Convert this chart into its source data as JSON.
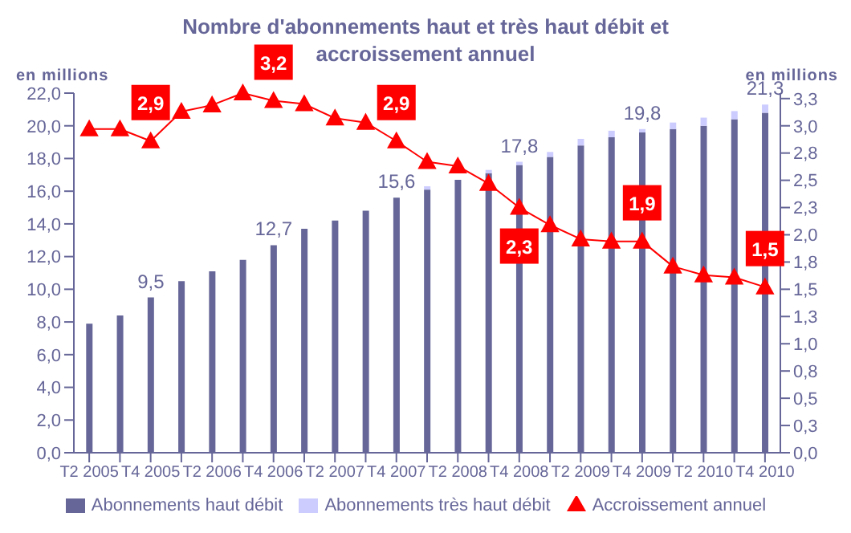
{
  "chart_data": {
    "type": "bar",
    "title": "Nombre d'abonnements haut et très haut débit et accroissement annuel",
    "ylabel": "en millions",
    "y2label": "en millions",
    "categories": [
      "T2 2005",
      null,
      "T4 2005",
      null,
      "T2 2006",
      null,
      "T4 2006",
      null,
      "T2 2007",
      null,
      "T4 2007",
      null,
      "T2 2008",
      null,
      "T4 2008",
      null,
      "T2 2009",
      null,
      "T4 2009",
      null,
      "T2 2010",
      null,
      "T4 2010"
    ],
    "stacked": true,
    "series": [
      {
        "name": "Abonnements haut débit",
        "color": "#666699",
        "values": [
          7.9,
          8.4,
          9.5,
          10.5,
          11.1,
          11.8,
          12.7,
          13.7,
          14.2,
          14.8,
          15.6,
          16.1,
          16.7,
          17.1,
          17.6,
          18.1,
          18.8,
          19.3,
          19.6,
          19.8,
          20.0,
          20.4,
          20.8
        ]
      },
      {
        "name": "Abonnements très haut débit",
        "color": "#ccccff",
        "values": [
          0,
          0,
          0,
          0,
          0,
          0,
          0,
          0,
          0,
          0,
          0,
          0.2,
          0,
          0.2,
          0.2,
          0.3,
          0.4,
          0.4,
          0.2,
          0.4,
          0.5,
          0.5,
          0.5
        ]
      },
      {
        "name": "Accroissement annuel",
        "type": "line",
        "axis": "y2",
        "color": "#ff0000",
        "values": [
          2.97,
          2.97,
          2.86,
          3.13,
          3.19,
          3.3,
          3.23,
          3.2,
          3.07,
          3.03,
          2.86,
          2.67,
          2.63,
          2.47,
          2.25,
          2.09,
          1.96,
          1.94,
          1.94,
          1.71,
          1.63,
          1.61,
          1.52
        ],
        "value_labels": [
          null,
          null,
          "2,9",
          null,
          null,
          null,
          "3,2",
          null,
          null,
          null,
          "2,9",
          null,
          null,
          null,
          "2,3",
          null,
          null,
          null,
          "1,9",
          null,
          null,
          null,
          "1,5"
        ]
      }
    ],
    "totals": [
      null,
      null,
      "9,5",
      null,
      null,
      null,
      "12,7",
      null,
      null,
      null,
      "15,6",
      null,
      null,
      null,
      "17,8",
      null,
      null,
      null,
      "19,8",
      null,
      null,
      null,
      "21,3"
    ],
    "ylim": [
      0,
      22
    ],
    "yticks": [
      {
        "value": 0,
        "label": "0,0"
      },
      {
        "value": 2,
        "label": "2,0"
      },
      {
        "value": 4,
        "label": "4,0"
      },
      {
        "value": 6,
        "label": "6,0"
      },
      {
        "value": 8,
        "label": "8,0"
      },
      {
        "value": 10,
        "label": "10,0"
      },
      {
        "value": 12,
        "label": "12,0"
      },
      {
        "value": 14,
        "label": "14,0"
      },
      {
        "value": 16,
        "label": "16,0"
      },
      {
        "value": 18,
        "label": "18,0"
      },
      {
        "value": 20,
        "label": "20,0"
      },
      {
        "value": 22,
        "label": "22,0"
      }
    ],
    "y2lim": [
      0,
      3.3
    ],
    "y2ticks": [
      {
        "value": 0,
        "label": "0,0"
      },
      {
        "value": 0.25,
        "label": "0,3"
      },
      {
        "value": 0.5,
        "label": "0,5"
      },
      {
        "value": 0.75,
        "label": "0,8"
      },
      {
        "value": 1,
        "label": "1,0"
      },
      {
        "value": 1.25,
        "label": "1,3"
      },
      {
        "value": 1.5,
        "label": "1,5"
      },
      {
        "value": 1.75,
        "label": "1,8"
      },
      {
        "value": 2,
        "label": "2,0"
      },
      {
        "value": 2.25,
        "label": "2,3"
      },
      {
        "value": 2.5,
        "label": "2,5"
      },
      {
        "value": 2.75,
        "label": "2,8"
      },
      {
        "value": 3,
        "label": "3,0"
      },
      {
        "value": 3.25,
        "label": "3,3"
      }
    ],
    "marker": "triangle",
    "line_style": "solid",
    "legend": "bottom"
  }
}
